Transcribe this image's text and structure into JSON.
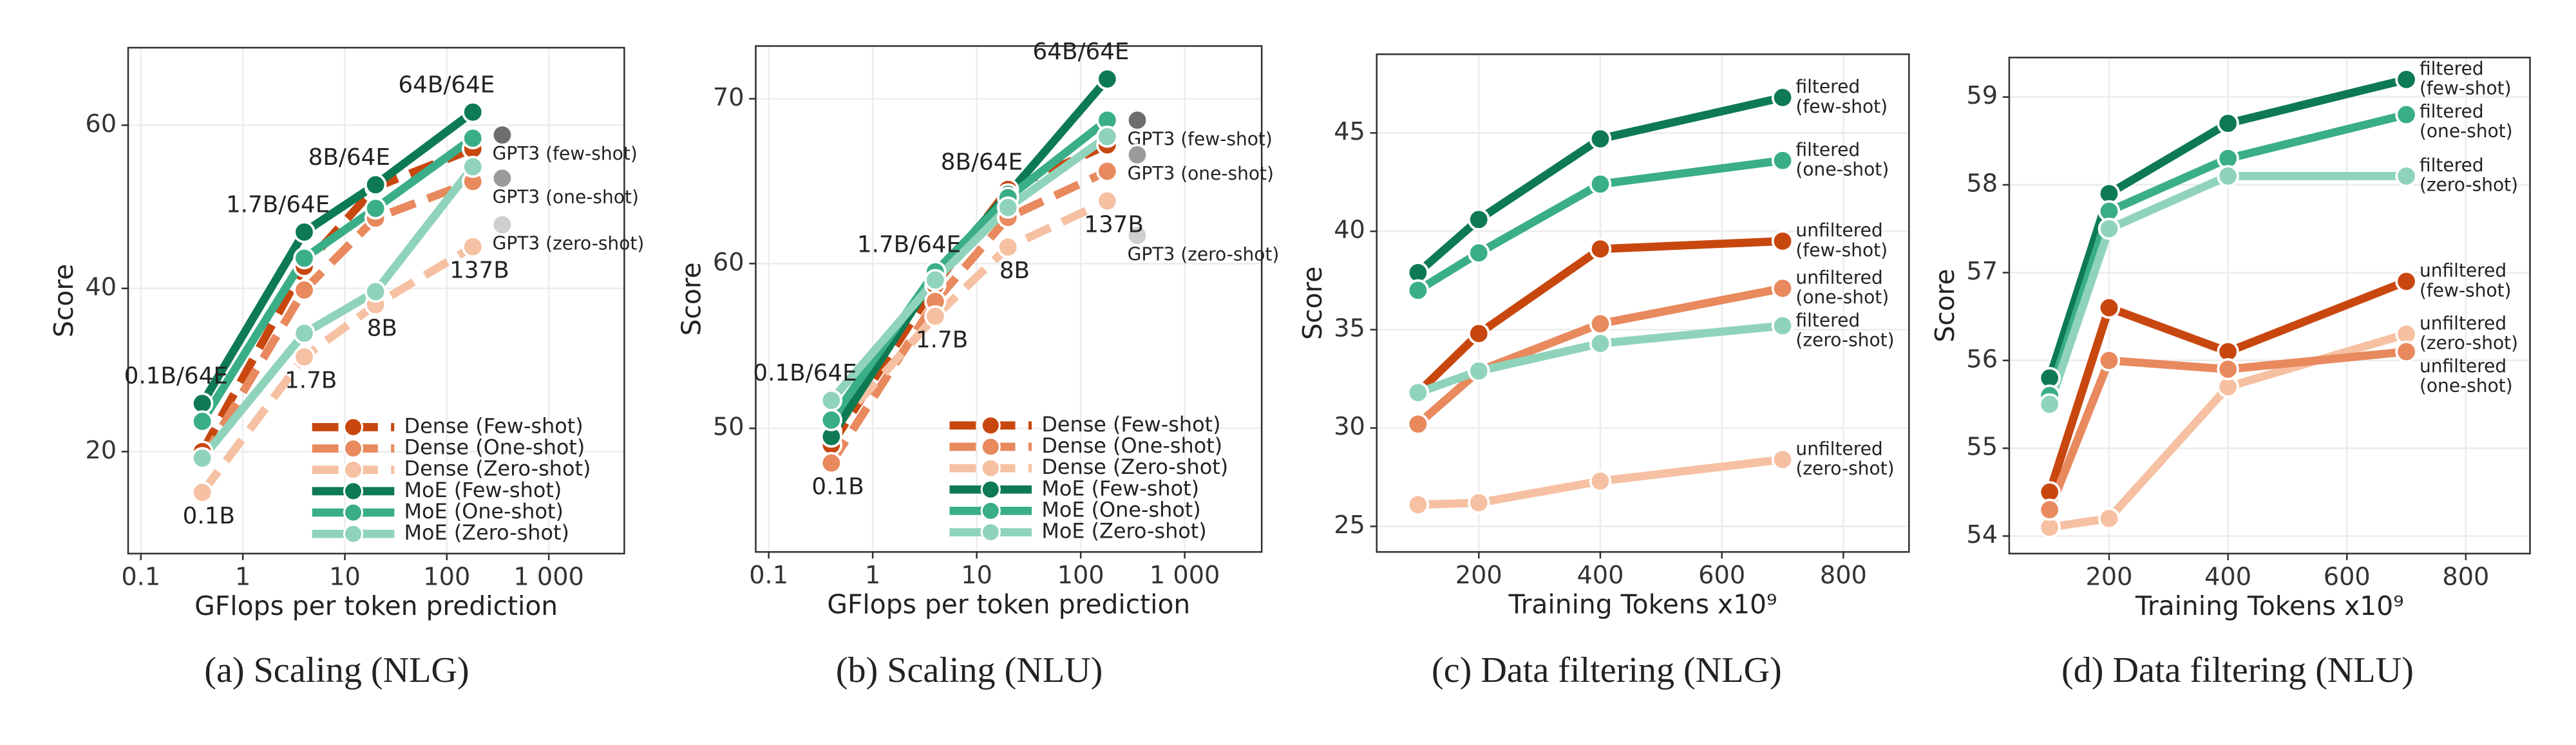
{
  "chart_data": [
    {
      "type": "line",
      "caption": "(a) Scaling (NLG)",
      "xlabel": "GFlops per token prediction",
      "ylabel": "Score",
      "xscale": "log",
      "xlim": [
        0.075,
        5500
      ],
      "ylim": [
        7.5,
        69.5
      ],
      "xticks": [
        0.1,
        1,
        10,
        100,
        {
          "value": 1000,
          "label": "1 000"
        }
      ],
      "yticks": [
        20,
        40,
        60
      ],
      "grid": true,
      "legend": "bottom-right",
      "x": [
        0.4,
        4,
        20,
        180
      ],
      "series": [
        {
          "name": "Dense (Few-shot)",
          "color": "#c8470f",
          "dashed": true,
          "values": [
            20,
            42.7,
            52.4,
            57.1
          ]
        },
        {
          "name": "Dense (One-shot)",
          "color": "#e8895e",
          "dashed": true,
          "values": [
            19,
            39.8,
            48.6,
            53.1
          ]
        },
        {
          "name": "Dense (Zero-shot)",
          "color": "#f6c0a2",
          "dashed": true,
          "values": [
            15,
            31.6,
            38,
            45.1
          ]
        },
        {
          "name": "MoE (Few-shot)",
          "color": "#0d7a53",
          "dashed": false,
          "values": [
            25.9,
            46.9,
            52.7,
            61.6
          ]
        },
        {
          "name": "MoE (One-shot)",
          "color": "#3aae88",
          "dashed": false,
          "values": [
            23.7,
            43.7,
            49.8,
            58.4
          ]
        },
        {
          "name": "MoE (Zero-shot)",
          "color": "#8fd3ba",
          "dashed": false,
          "values": [
            19.2,
            34.5,
            39.6,
            54.9
          ]
        }
      ],
      "moe_labels": [
        "0.1B/64E",
        "1.7B/64E",
        "8B/64E",
        "64B/64E"
      ],
      "dense_labels": [
        "0.1B",
        "1.7B",
        "8B",
        "137B"
      ],
      "gpt3": [
        {
          "name": "GPT3 (few-shot)",
          "color": "#6e6e6e",
          "x": 350,
          "value": 58.8
        },
        {
          "name": "GPT3 (one-shot)",
          "color": "#9a9a9a",
          "x": 350,
          "value": 53.5
        },
        {
          "name": "GPT3 (zero-shot)",
          "color": "#cfcfcf",
          "x": 350,
          "value": 47.8
        }
      ]
    },
    {
      "type": "line",
      "caption": "(b) Scaling (NLU)",
      "xlabel": "GFlops per token prediction",
      "ylabel": "Score",
      "xscale": "log",
      "xlim": [
        0.075,
        5500
      ],
      "ylim": [
        42.5,
        73.2
      ],
      "xticks": [
        0.1,
        1,
        10,
        100,
        {
          "value": 1000,
          "label": "1 000"
        }
      ],
      "yticks": [
        50,
        60,
        70
      ],
      "grid": true,
      "legend": "bottom-right",
      "x": [
        0.4,
        4,
        20,
        180
      ],
      "series": [
        {
          "name": "Dense (Few-shot)",
          "color": "#c8470f",
          "dashed": true,
          "values": [
            49,
            58.7,
            64.5,
            67.2
          ]
        },
        {
          "name": "Dense (One-shot)",
          "color": "#e8895e",
          "dashed": true,
          "values": [
            47.9,
            57.7,
            62.8,
            65.6
          ]
        },
        {
          "name": "Dense (Zero-shot)",
          "color": "#f6c0a2",
          "dashed": true,
          "values": [
            49.8,
            56.8,
            61,
            63.8
          ]
        },
        {
          "name": "MoE (Few-shot)",
          "color": "#0d7a53",
          "dashed": false,
          "values": [
            49.5,
            59.3,
            64.2,
            71.2
          ]
        },
        {
          "name": "MoE (One-shot)",
          "color": "#3aae88",
          "dashed": false,
          "values": [
            50.5,
            59.5,
            64,
            68.7
          ]
        },
        {
          "name": "MoE (Zero-shot)",
          "color": "#8fd3ba",
          "dashed": false,
          "values": [
            51.7,
            59,
            63.4,
            67.7
          ]
        }
      ],
      "moe_labels": [
        "0.1B/64E",
        "1.7B/64E",
        "8B/64E",
        "64B/64E"
      ],
      "dense_labels": [
        "0.1B",
        "1.7B",
        "8B",
        "137B"
      ],
      "gpt3": [
        {
          "name": "GPT3 (few-shot)",
          "color": "#6e6e6e",
          "x": 350,
          "value": 68.7
        },
        {
          "name": "GPT3 (one-shot)",
          "color": "#9a9a9a",
          "x": 350,
          "value": 66.6
        },
        {
          "name": "GPT3 (zero-shot)",
          "color": "#cfcfcf",
          "x": 350,
          "value": 61.7
        }
      ]
    },
    {
      "type": "line",
      "caption": "(c) Data filtering (NLG)",
      "xlabel": "Training Tokens x10⁹",
      "ylabel": "Score",
      "xscale": "linear",
      "xlim": [
        32,
        908
      ],
      "ylim": [
        23.7,
        49
      ],
      "xticks": [
        200,
        400,
        600,
        800
      ],
      "yticks": [
        25,
        30,
        35,
        40,
        45
      ],
      "grid": true,
      "x": [
        100,
        200,
        400,
        700
      ],
      "series": [
        {
          "name": [
            "filtered",
            "(few-shot)"
          ],
          "color": "#0d7a53",
          "dashed": false,
          "values": [
            37.9,
            40.6,
            44.7,
            46.8
          ]
        },
        {
          "name": [
            "filtered",
            "(one-shot)"
          ],
          "color": "#3aae88",
          "dashed": false,
          "values": [
            37,
            38.9,
            42.4,
            43.6
          ]
        },
        {
          "name": [
            "unfiltered",
            "(few-shot)"
          ],
          "color": "#c8470f",
          "dashed": false,
          "values": [
            31.8,
            34.8,
            39.1,
            39.5
          ]
        },
        {
          "name": [
            "unfiltered",
            "(one-shot)"
          ],
          "color": "#e8895e",
          "dashed": false,
          "values": [
            30.2,
            32.9,
            35.3,
            37.1
          ]
        },
        {
          "name": [
            "filtered",
            "(zero-shot)"
          ],
          "color": "#8fd3ba",
          "dashed": false,
          "values": [
            31.8,
            32.9,
            34.3,
            35.2
          ]
        },
        {
          "name": [
            "unfiltered",
            "(zero-shot)"
          ],
          "color": "#f6c0a2",
          "dashed": false,
          "values": [
            26.1,
            26.2,
            27.3,
            28.4
          ]
        }
      ]
    },
    {
      "type": "line",
      "caption": "(d) Data filtering (NLU)",
      "xlabel": "Training Tokens x10⁹",
      "ylabel": "Score",
      "xscale": "linear",
      "xlim": [
        32,
        908
      ],
      "ylim": [
        53.8,
        59.45
      ],
      "xticks": [
        200,
        400,
        600,
        800
      ],
      "yticks": [
        54,
        55,
        56,
        57,
        58,
        59
      ],
      "grid": true,
      "x": [
        100,
        200,
        400,
        700
      ],
      "series": [
        {
          "name": [
            "filtered",
            "(few-shot)"
          ],
          "color": "#0d7a53",
          "dashed": false,
          "values": [
            55.8,
            57.9,
            58.7,
            59.2
          ]
        },
        {
          "name": [
            "filtered",
            "(one-shot)"
          ],
          "color": "#3aae88",
          "dashed": false,
          "values": [
            55.6,
            57.7,
            58.3,
            58.8
          ]
        },
        {
          "name": [
            "filtered",
            "(zero-shot)"
          ],
          "color": "#8fd3ba",
          "dashed": false,
          "values": [
            55.5,
            57.5,
            58.1,
            58.1
          ]
        },
        {
          "name": [
            "unfiltered",
            "(few-shot)"
          ],
          "color": "#c8470f",
          "dashed": false,
          "values": [
            54.5,
            56.6,
            56.1,
            56.9
          ]
        },
        {
          "name": [
            "unfiltered",
            "(zero-shot)"
          ],
          "color": "#f6c0a2",
          "dashed": false,
          "values": [
            54.1,
            54.2,
            55.7,
            56.3
          ]
        },
        {
          "name": [
            "unfiltered",
            "(one-shot)"
          ],
          "color": "#e8895e",
          "dashed": false,
          "values": [
            54.3,
            56,
            55.9,
            56.1
          ]
        }
      ]
    }
  ]
}
